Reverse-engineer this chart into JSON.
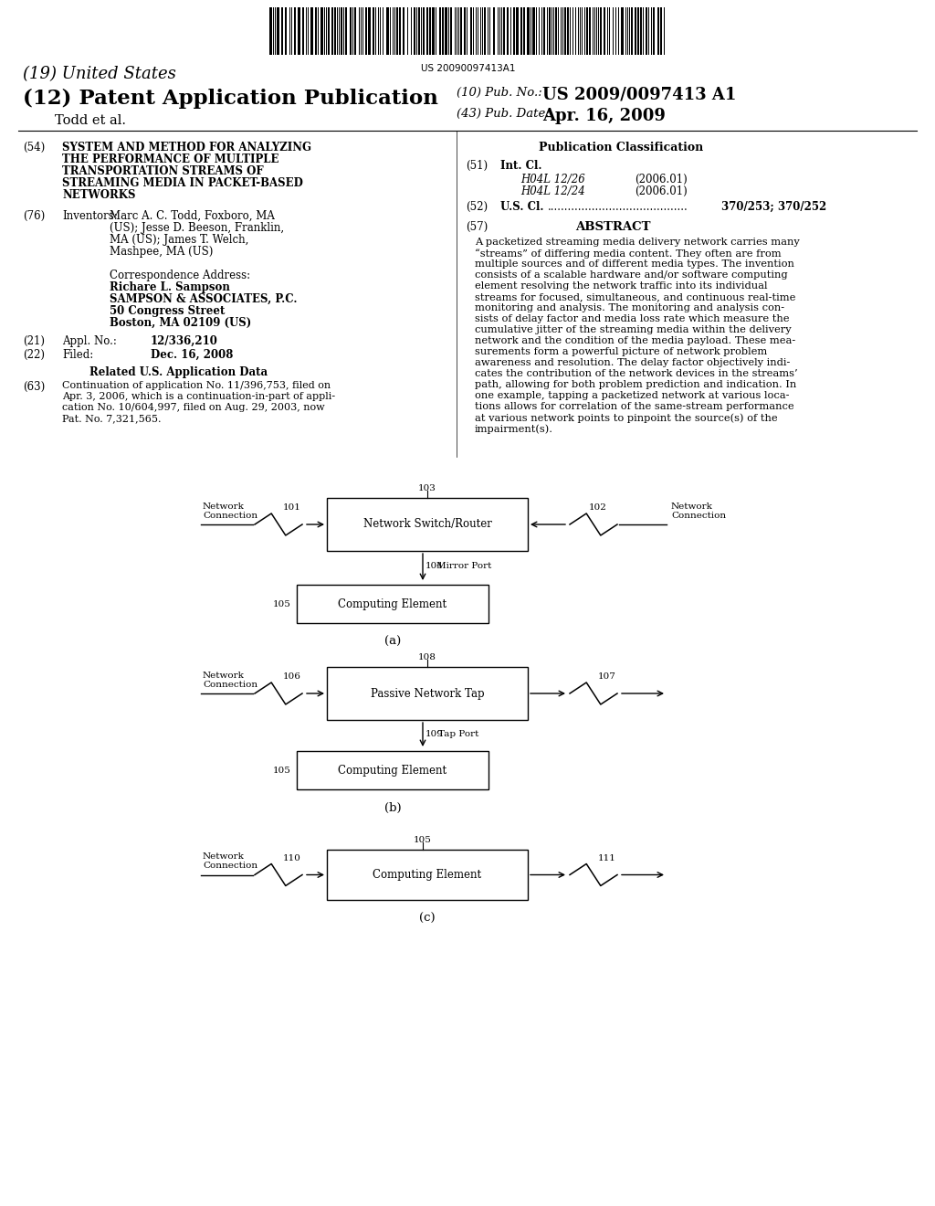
{
  "background_color": "#ffffff",
  "barcode_text": "US 20090097413A1",
  "header": {
    "country": "(19) United States",
    "type": "(12) Patent Application Publication",
    "authors": "Todd et al.",
    "pub_no_label": "(10) Pub. No.:",
    "pub_no": "US 2009/0097413 A1",
    "pub_date_label": "(43) Pub. Date:",
    "pub_date": "Apr. 16, 2009"
  },
  "left_col": {
    "title_num": "(54)",
    "title": "SYSTEM AND METHOD FOR ANALYZING\nTHE PERFORMANCE OF MULTIPLE\nTRANSPORTATION STREAMS OF\nSTREAMING MEDIA IN PACKET-BASED\nNETWORKS",
    "inventors_num": "(76)",
    "inventors_label": "Inventors:",
    "inventors_line1": "Marc A. C. Todd, Foxboro, MA",
    "inventors_line2": "(US); Jesse D. Beeson, Franklin,",
    "inventors_line3": "MA (US); James T. Welch,",
    "inventors_line4": "Mashpee, MA (US)",
    "corr_label": "Correspondence Address:",
    "corr_name": "Richare L. Sampson",
    "corr_firm": "SAMPSON & ASSOCIATES, P.C.",
    "corr_addr1": "50 Congress Street",
    "corr_addr2": "Boston, MA 02109 (US)",
    "appl_num": "(21)",
    "appl_label": "Appl. No.:",
    "appl_val": "12/336,210",
    "filed_num": "(22)",
    "filed_label": "Filed:",
    "filed_val": "Dec. 16, 2008",
    "related_header": "Related U.S. Application Data",
    "related_num": "(63)",
    "related_line1": "Continuation of application No. 11/396,753, filed on",
    "related_line2": "Apr. 3, 2006, which is a continuation-in-part of appli-",
    "related_line3": "cation No. 10/604,997, filed on Aug. 29, 2003, now",
    "related_line4": "Pat. No. 7,321,565."
  },
  "right_col": {
    "pub_class_header": "Publication Classification",
    "intcl_num": "(51)",
    "intcl_label": "Int. Cl.",
    "intcl_1_code": "H04L 12/26",
    "intcl_1_year": "(2006.01)",
    "intcl_2_code": "H04L 12/24",
    "intcl_2_year": "(2006.01)",
    "uscl_num": "(52)",
    "uscl_label": "U.S. Cl.",
    "uscl_dots": ".........................................",
    "uscl_val": "370/253; 370/252",
    "abstract_num": "(57)",
    "abstract_header": "ABSTRACT",
    "abstract_lines": [
      "A packetized streaming media delivery network carries many",
      "“streams” of differing media content. They often are from",
      "multiple sources and of different media types. The invention",
      "consists of a scalable hardware and/or software computing",
      "element resolving the network traffic into its individual",
      "streams for focused, simultaneous, and continuous real-time",
      "monitoring and analysis. The monitoring and analysis con-",
      "sists of delay factor and media loss rate which measure the",
      "cumulative jitter of the streaming media within the delivery",
      "network and the condition of the media payload. These mea-",
      "surements form a powerful picture of network problem",
      "awareness and resolution. The delay factor objectively indi-",
      "cates the contribution of the network devices in the streams’",
      "path, allowing for both problem prediction and indication. In",
      "one example, tapping a packetized network at various loca-",
      "tions allows for correlation of the same-stream performance",
      "at various network points to pinpoint the source(s) of the",
      "impairment(s)."
    ]
  },
  "diag_a": {
    "label": "(a)",
    "box1_text": "Network Switch/Router",
    "box1_num": "103",
    "box2_text": "Computing Element",
    "box2_num": "105",
    "left_label": "Network\nConnection",
    "left_num": "101",
    "right_label": "Network\nConnection",
    "right_num": "102",
    "port_label": "Mirror Port",
    "port_num": "104"
  },
  "diag_b": {
    "label": "(b)",
    "box1_text": "Passive Network Tap",
    "box1_num": "108",
    "box2_text": "Computing Element",
    "box2_num": "105",
    "left_label": "Network\nConnection",
    "left_num": "106",
    "right_num": "107",
    "port_label": "Tap Port",
    "port_num": "109"
  },
  "diag_c": {
    "label": "(c)",
    "box1_text": "Computing Element",
    "box1_num": "105",
    "left_label": "Network\nConnection",
    "left_num": "110",
    "right_num": "111"
  }
}
